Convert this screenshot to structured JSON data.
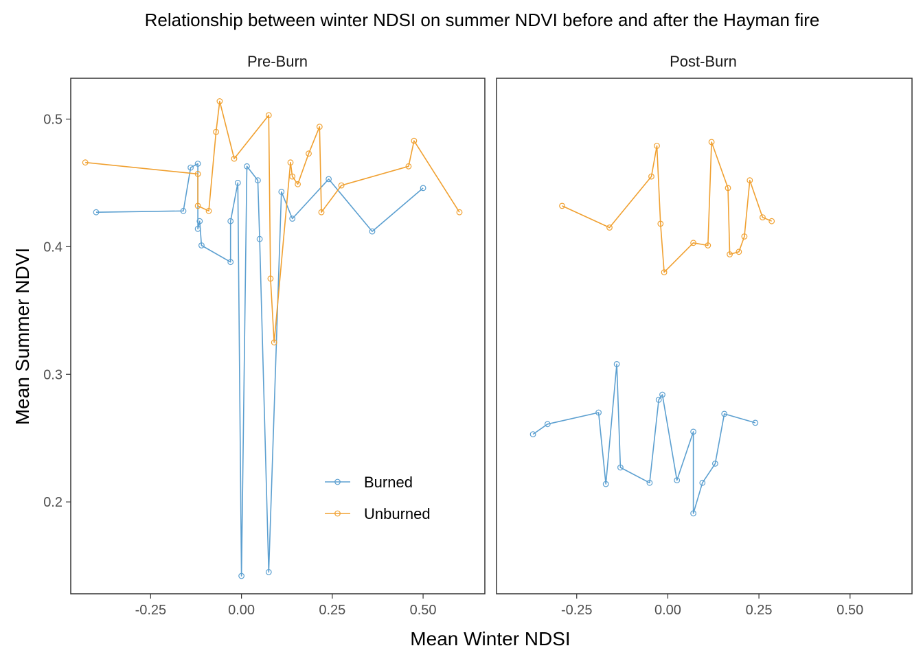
{
  "chart_data": {
    "type": "line",
    "title": "Relationship between winter NDSI on summer NDVI before and after the Hayman fire",
    "xlabel": "Mean Winter NDSI",
    "ylabel": "Mean Summer NDVI",
    "xlim": [
      -0.47,
      0.67
    ],
    "ylim": [
      0.128,
      0.532
    ],
    "x_ticks": [
      -0.25,
      0.0,
      0.25,
      0.5
    ],
    "x_tick_labels": [
      "-0.25",
      "0.00",
      "0.25",
      "0.50"
    ],
    "y_ticks": [
      0.2,
      0.3,
      0.4,
      0.5
    ],
    "y_tick_labels": [
      "0.2",
      "0.3",
      "0.4",
      "0.5"
    ],
    "grid": false,
    "legend_position": "inside-bottom-right of first panel",
    "legend": [
      {
        "name": "Burned",
        "color": "#5b9fd0"
      },
      {
        "name": "Unburned",
        "color": "#f0a030"
      }
    ],
    "panels": [
      {
        "label": "Pre-Burn",
        "series": [
          {
            "name": "Burned",
            "color": "#5b9fd0",
            "points": [
              [
                -0.4,
                0.427
              ],
              [
                -0.16,
                0.428
              ],
              [
                -0.14,
                0.462
              ],
              [
                -0.12,
                0.465
              ],
              [
                -0.12,
                0.414
              ],
              [
                -0.115,
                0.42
              ],
              [
                -0.11,
                0.401
              ],
              [
                -0.03,
                0.388
              ],
              [
                -0.03,
                0.42
              ],
              [
                -0.01,
                0.45
              ],
              [
                0.0,
                0.142
              ],
              [
                0.015,
                0.463
              ],
              [
                0.045,
                0.452
              ],
              [
                0.05,
                0.406
              ],
              [
                0.075,
                0.145
              ],
              [
                0.11,
                0.443
              ],
              [
                0.14,
                0.422
              ],
              [
                0.24,
                0.453
              ],
              [
                0.36,
                0.412
              ],
              [
                0.5,
                0.446
              ]
            ]
          },
          {
            "name": "Unburned",
            "color": "#f0a030",
            "points": [
              [
                -0.43,
                0.466
              ],
              [
                -0.12,
                0.457
              ],
              [
                -0.12,
                0.432
              ],
              [
                -0.09,
                0.428
              ],
              [
                -0.07,
                0.49
              ],
              [
                -0.06,
                0.514
              ],
              [
                -0.02,
                0.469
              ],
              [
                0.075,
                0.503
              ],
              [
                0.08,
                0.375
              ],
              [
                0.09,
                0.325
              ],
              [
                0.135,
                0.466
              ],
              [
                0.14,
                0.455
              ],
              [
                0.155,
                0.449
              ],
              [
                0.185,
                0.473
              ],
              [
                0.215,
                0.494
              ],
              [
                0.22,
                0.427
              ],
              [
                0.275,
                0.448
              ],
              [
                0.46,
                0.463
              ],
              [
                0.475,
                0.483
              ],
              [
                0.6,
                0.427
              ]
            ]
          }
        ]
      },
      {
        "label": "Post-Burn",
        "series": [
          {
            "name": "Burned",
            "color": "#5b9fd0",
            "points": [
              [
                -0.37,
                0.253
              ],
              [
                -0.33,
                0.261
              ],
              [
                -0.19,
                0.27
              ],
              [
                -0.17,
                0.214
              ],
              [
                -0.14,
                0.308
              ],
              [
                -0.13,
                0.227
              ],
              [
                -0.05,
                0.215
              ],
              [
                -0.025,
                0.28
              ],
              [
                -0.015,
                0.284
              ],
              [
                0.025,
                0.217
              ],
              [
                0.07,
                0.255
              ],
              [
                0.07,
                0.191
              ],
              [
                0.095,
                0.215
              ],
              [
                0.13,
                0.23
              ],
              [
                0.155,
                0.269
              ],
              [
                0.24,
                0.262
              ]
            ]
          },
          {
            "name": "Unburned",
            "color": "#f0a030",
            "points": [
              [
                -0.29,
                0.432
              ],
              [
                -0.16,
                0.415
              ],
              [
                -0.045,
                0.455
              ],
              [
                -0.03,
                0.479
              ],
              [
                -0.02,
                0.418
              ],
              [
                -0.01,
                0.38
              ],
              [
                0.07,
                0.403
              ],
              [
                0.11,
                0.401
              ],
              [
                0.12,
                0.482
              ],
              [
                0.165,
                0.446
              ],
              [
                0.17,
                0.394
              ],
              [
                0.195,
                0.396
              ],
              [
                0.21,
                0.408
              ],
              [
                0.225,
                0.452
              ],
              [
                0.26,
                0.423
              ],
              [
                0.285,
                0.42
              ]
            ]
          }
        ]
      }
    ]
  }
}
